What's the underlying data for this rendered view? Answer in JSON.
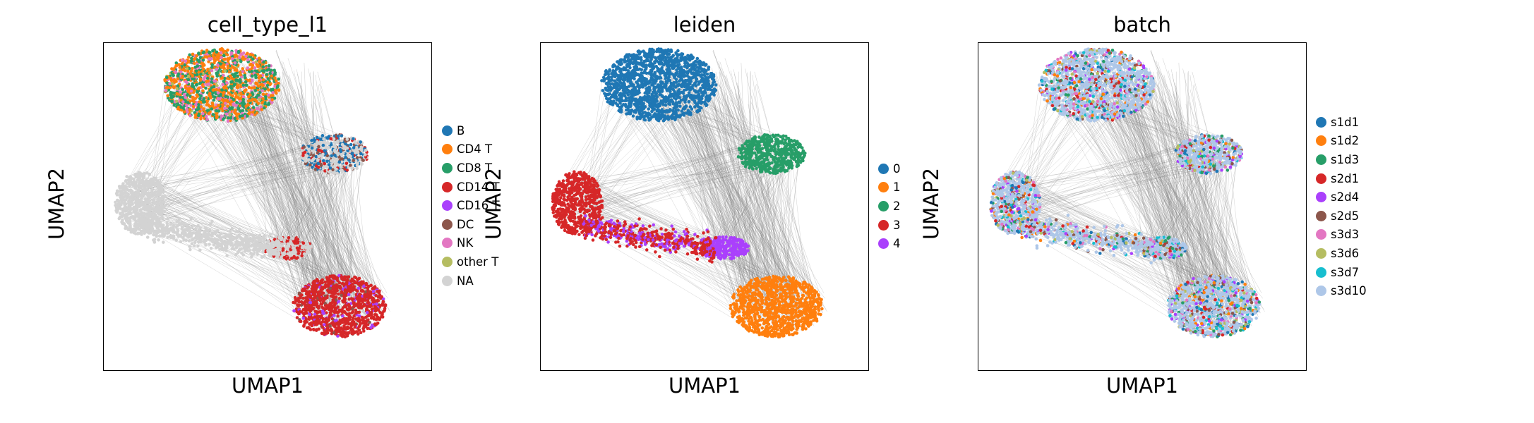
{
  "chart_data": [
    {
      "type": "scatter",
      "title": "cell_type_l1",
      "xlabel": "UMAP1",
      "ylabel": "UMAP2",
      "legend_placement": "right",
      "legend": [
        {
          "label": "B",
          "color": "#1f77b4"
        },
        {
          "label": "CD4 T",
          "color": "#ff7f0e"
        },
        {
          "label": "CD8 T",
          "color": "#279e68"
        },
        {
          "label": "CD14 T",
          "color": "#d62728"
        },
        {
          "label": "CD16 T",
          "color": "#aa40fc"
        },
        {
          "label": "DC",
          "color": "#8c564b"
        },
        {
          "label": "NK",
          "color": "#e377c2"
        },
        {
          "label": "other T",
          "color": "#b5bd61"
        },
        {
          "label": "NA",
          "color": "#d3d3d3"
        }
      ]
    },
    {
      "type": "scatter",
      "title": "leiden",
      "xlabel": "UMAP1",
      "ylabel": "UMAP2",
      "legend_placement": "right",
      "legend": [
        {
          "label": "0",
          "color": "#1f77b4"
        },
        {
          "label": "1",
          "color": "#ff7f0e"
        },
        {
          "label": "2",
          "color": "#279e68"
        },
        {
          "label": "3",
          "color": "#d62728"
        },
        {
          "label": "4",
          "color": "#aa40fc"
        }
      ]
    },
    {
      "type": "scatter",
      "title": "batch",
      "xlabel": "UMAP1",
      "ylabel": "UMAP2",
      "legend_placement": "right",
      "legend": [
        {
          "label": "s1d1",
          "color": "#1f77b4"
        },
        {
          "label": "s1d2",
          "color": "#ff7f0e"
        },
        {
          "label": "s1d3",
          "color": "#279e68"
        },
        {
          "label": "s2d1",
          "color": "#d62728"
        },
        {
          "label": "s2d4",
          "color": "#aa40fc"
        },
        {
          "label": "s2d5",
          "color": "#8c564b"
        },
        {
          "label": "s3d3",
          "color": "#e377c2"
        },
        {
          "label": "s3d6",
          "color": "#b5bd61"
        },
        {
          "label": "s3d7",
          "color": "#17becf"
        },
        {
          "label": "s3d10",
          "color": "#aec7e8"
        }
      ]
    }
  ],
  "colors": {
    "edges": "#808080",
    "frame": "#000000"
  }
}
